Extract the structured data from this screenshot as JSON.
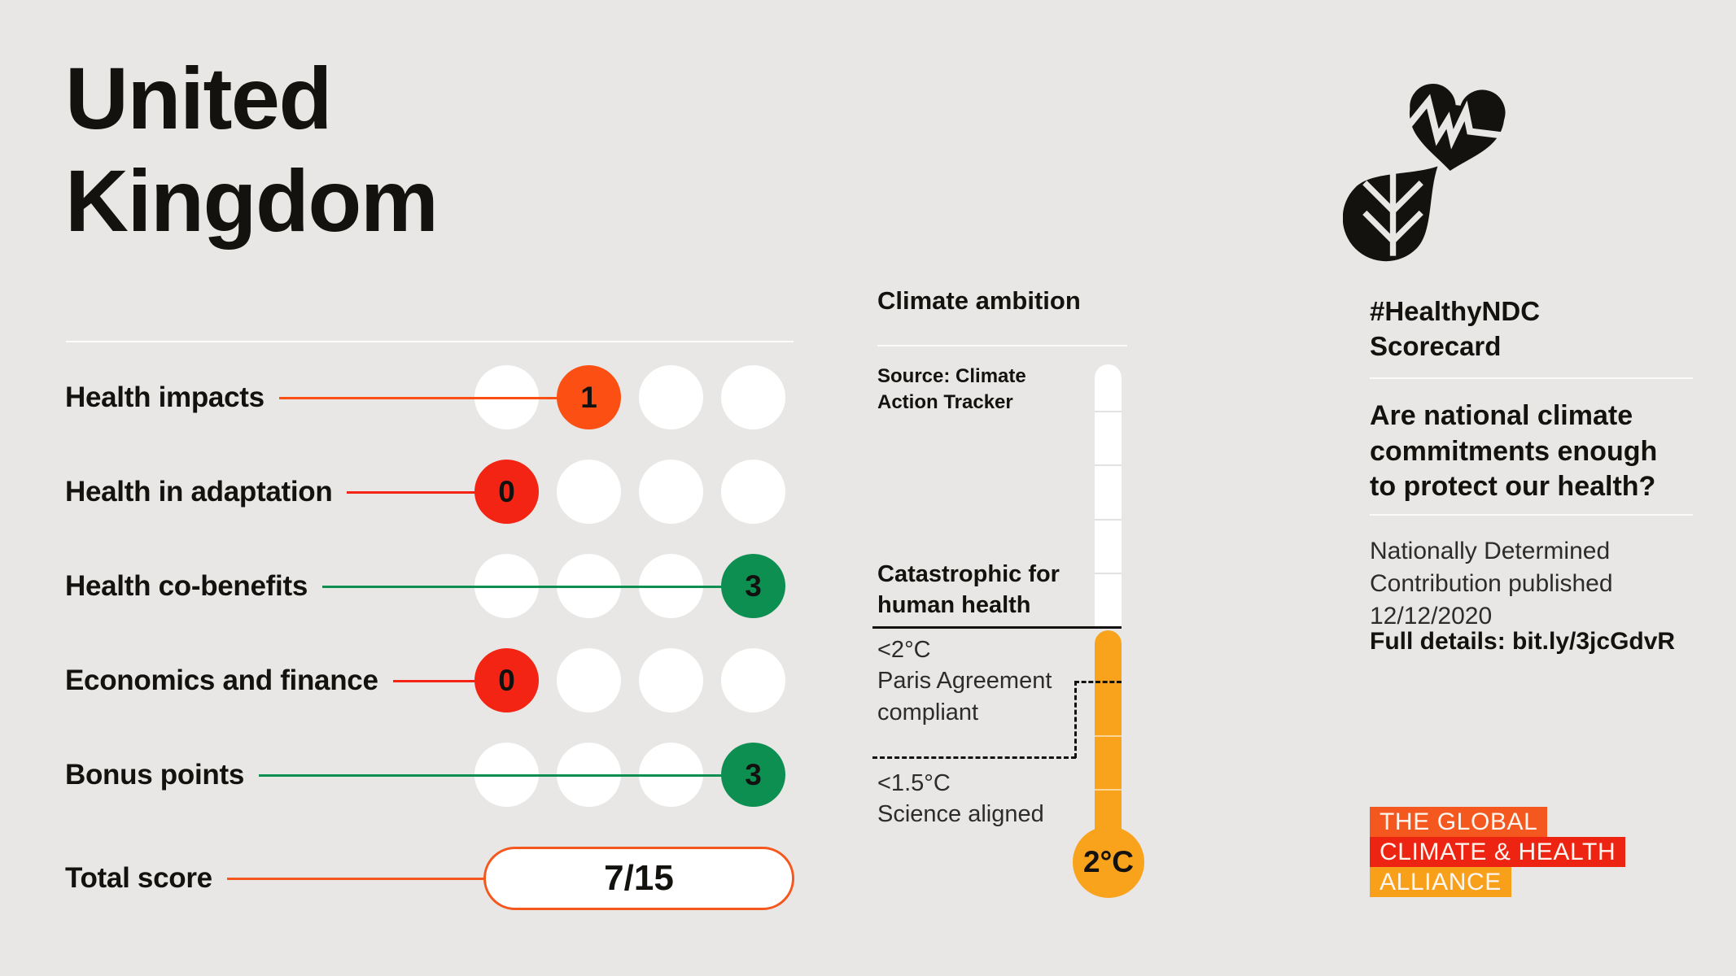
{
  "country": "United\nKingdom",
  "chart_data": {
    "type": "bar",
    "title": "United Kingdom #HealthyNDC Scorecard",
    "categories": [
      "Health impacts",
      "Health in adaptation",
      "Health co-benefits",
      "Economics and finance",
      "Bonus points"
    ],
    "values": [
      1,
      0,
      3,
      0,
      3
    ],
    "value_range": [
      0,
      3
    ],
    "dots_per_row": 4,
    "total_score": "7/15",
    "climate_ambition": {
      "source": "Climate Action Tracker",
      "rating": "2°C",
      "zones": [
        {
          "label": "Catastrophic for human health",
          "relation": "above 2°C"
        },
        {
          "label": "<2°C Paris Agreement compliant"
        },
        {
          "label": "<1.5°C Science aligned"
        }
      ]
    }
  },
  "scorecard": {
    "rows": [
      {
        "label": "Health impacts",
        "score": "1",
        "position": 2,
        "color": "#FB4F13"
      },
      {
        "label": "Health in adaptation",
        "score": "0",
        "position": 1,
        "color": "#F32413"
      },
      {
        "label": "Health co-benefits",
        "score": "3",
        "position": 4,
        "color": "#0E8F52"
      },
      {
        "label": "Economics and finance",
        "score": "0",
        "position": 1,
        "color": "#F32413"
      },
      {
        "label": "Bonus points",
        "score": "3",
        "position": 4,
        "color": "#0E8F52"
      }
    ],
    "total": {
      "label": "Total score",
      "value": "7/15",
      "color": "#F4581E"
    }
  },
  "thermometer": {
    "title": "Climate ambition",
    "source": "Source: Climate\nAction Tracker",
    "catastrophic": "Catastrophic for\nhuman health",
    "two_deg": "<2°C\nParis Agreement\ncompliant",
    "one_five": "<1.5°C\nScience aligned",
    "bulb": "2°C",
    "fill_color": "#F9A21C"
  },
  "panel": {
    "hashtag": "#HealthyNDC\nScorecard",
    "question": "Are national climate\ncommitments enough\nto protect our health?",
    "ndc": "Nationally Determined\nContribution published\n12/12/2020",
    "details": "Full details: bit.ly/3jcGdvR",
    "alliance": [
      {
        "text": "THE GLOBAL",
        "bg": "#F4581E"
      },
      {
        "text": "CLIMATE & HEALTH",
        "bg": "#EE2413"
      },
      {
        "text": "ALLIANCE",
        "bg": "#F9A01B"
      }
    ]
  }
}
